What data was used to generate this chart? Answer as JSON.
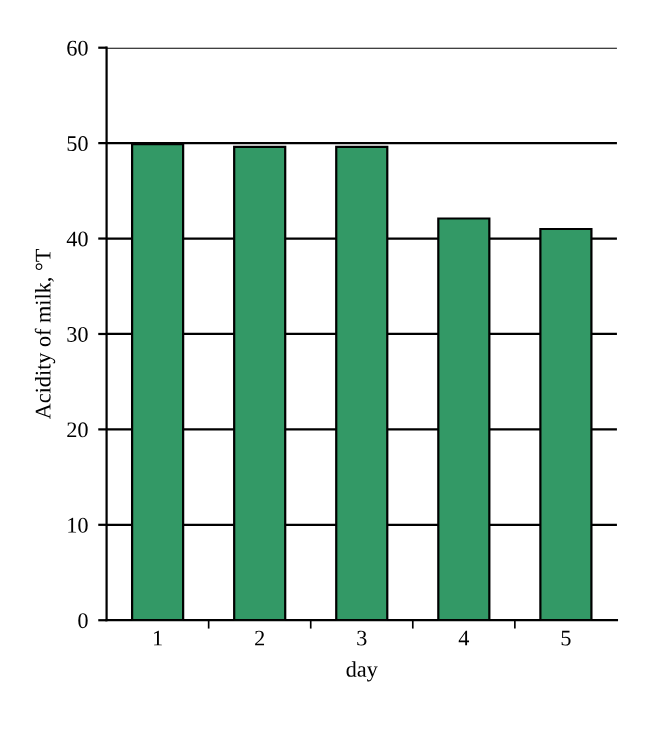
{
  "chart_data": {
    "type": "bar",
    "xlabel": "day",
    "ylabel": "Acidity of milk, °T",
    "categories": [
      "1",
      "2",
      "3",
      "4",
      "5"
    ],
    "values": [
      49.9,
      49.6,
      49.6,
      42.1,
      41.0
    ],
    "color": "#339966",
    "ylim": [
      0,
      60
    ],
    "yticks": [
      0,
      10,
      20,
      30,
      40,
      50,
      60
    ],
    "grid": "y",
    "legend": false
  }
}
